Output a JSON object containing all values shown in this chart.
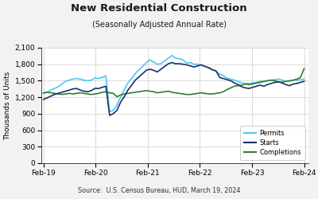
{
  "title": "New Residential Construction",
  "subtitle": "(Seasonally Adjusted Annual Rate)",
  "ylabel": "Thousands of Units",
  "source": "Source:  U.S. Census Bureau, HUD, March 19, 2024",
  "ylim": [
    0,
    2100
  ],
  "yticks": [
    0,
    300,
    600,
    900,
    1200,
    1500,
    1800,
    2100
  ],
  "xtick_labels": [
    "Feb-19",
    "Feb-20",
    "Feb-21",
    "Feb-22",
    "Feb-23",
    "Feb-24"
  ],
  "permits_color": "#4DC8F0",
  "starts_color": "#1C2F6B",
  "completions_color": "#2E7D32",
  "background_color": "#f2f2f2",
  "plot_bg_color": "#ffffff",
  "grid_color": "#cccccc",
  "permits": [
    1270,
    1290,
    1330,
    1360,
    1390,
    1440,
    1490,
    1510,
    1530,
    1540,
    1530,
    1510,
    1500,
    1510,
    1550,
    1540,
    1560,
    1590,
    940,
    960,
    1060,
    1200,
    1340,
    1460,
    1540,
    1630,
    1700,
    1760,
    1830,
    1880,
    1840,
    1800,
    1810,
    1860,
    1910,
    1960,
    1910,
    1900,
    1880,
    1820,
    1830,
    1800,
    1800,
    1780,
    1760,
    1730,
    1700,
    1670,
    1620,
    1590,
    1550,
    1530,
    1510,
    1490,
    1460,
    1450,
    1450,
    1460,
    1470,
    1490,
    1480,
    1500,
    1510,
    1520,
    1530,
    1510,
    1490,
    1490,
    1510,
    1510,
    1520,
    1530
  ],
  "starts": [
    1160,
    1190,
    1220,
    1250,
    1270,
    1290,
    1310,
    1330,
    1350,
    1360,
    1330,
    1310,
    1300,
    1320,
    1360,
    1360,
    1380,
    1400,
    870,
    900,
    960,
    1110,
    1210,
    1330,
    1420,
    1510,
    1570,
    1630,
    1690,
    1710,
    1690,
    1660,
    1710,
    1760,
    1810,
    1830,
    1810,
    1810,
    1800,
    1790,
    1770,
    1750,
    1770,
    1790,
    1760,
    1740,
    1700,
    1680,
    1560,
    1540,
    1520,
    1500,
    1460,
    1430,
    1390,
    1370,
    1360,
    1380,
    1400,
    1420,
    1400,
    1430,
    1450,
    1470,
    1480,
    1460,
    1430,
    1410,
    1440,
    1450,
    1470,
    1490
  ],
  "completions": [
    1280,
    1290,
    1280,
    1270,
    1260,
    1250,
    1260,
    1270,
    1260,
    1270,
    1280,
    1270,
    1260,
    1250,
    1260,
    1270,
    1290,
    1300,
    1280,
    1270,
    1210,
    1240,
    1260,
    1270,
    1280,
    1290,
    1300,
    1310,
    1320,
    1310,
    1300,
    1280,
    1290,
    1300,
    1310,
    1290,
    1280,
    1270,
    1260,
    1250,
    1250,
    1260,
    1270,
    1280,
    1270,
    1260,
    1260,
    1270,
    1280,
    1300,
    1340,
    1370,
    1400,
    1410,
    1420,
    1440,
    1430,
    1440,
    1460,
    1470,
    1490,
    1500,
    1510,
    1500,
    1480,
    1470,
    1490,
    1500,
    1510,
    1530,
    1560,
    1720
  ]
}
